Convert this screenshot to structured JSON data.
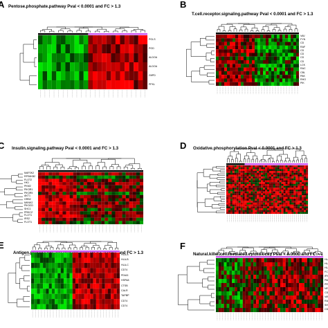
{
  "chart_data": [
    {
      "type": "heatmap",
      "panel": "A",
      "title": "Pentose.phosphate.pathway Pval < 0.0001 and FC > 1.3",
      "rows": [
        "PGLS",
        "PGD",
        "ALDOA",
        "ALDOA",
        "G6PD",
        "PFKL"
      ],
      "n_samples": 24,
      "group_split": 0.47,
      "scheme": "A"
    },
    {
      "type": "heatmap",
      "panel": "B",
      "title": "T.cell.receptor.signaling.pathway Pval < 0.0001 and FC > 1.3",
      "rows": [
        "VAV",
        "FYN",
        "CD",
        "RAF",
        "CD",
        "CD",
        "CD",
        "CD",
        "LCK",
        "RAC",
        "CBL",
        "PAK",
        "RHO",
        "PIK"
      ],
      "n_samples": 30,
      "group_split": 0.45,
      "scheme": "B"
    },
    {
      "type": "heatmap",
      "panel": "C",
      "title": "Insulin.signaling.pathway Pval < 0.0001 and FC > 1.3",
      "rows": [
        "MAP2K2",
        "RPS6KB2",
        "FLOT2",
        "HK1",
        "PKM2",
        "PIK3R1",
        "PIK3R5",
        "AKT1",
        "GRB2",
        "MKNK2",
        "PIK3CD",
        "SHC1",
        "PRKCZ",
        "FLOT1",
        "IRS2",
        "FLOT1"
      ],
      "n_samples": 30,
      "group_split": 0.35,
      "scheme": "C"
    },
    {
      "type": "heatmap",
      "panel": "D",
      "title": "Oxidative.phosphorylation Pval < 0.0001 and FC > 1.3",
      "rows": [],
      "n_samples": 40,
      "group_split": 0.22,
      "scheme": "D"
    },
    {
      "type": "heatmap",
      "panel": "E",
      "title": "Antigen.processing.and.presentation Pval < 0.0001 and FC > 1.3",
      "rows": [
        "HLA-A",
        "HLA-B",
        "HLA-C",
        "CD74",
        "PDIA3",
        "HSPA8",
        "CTSB",
        "CALR",
        "TAPBP",
        "CD74",
        "CD74"
      ],
      "n_samples": 30,
      "group_split": 0.48,
      "scheme": "E"
    },
    {
      "type": "heatmap",
      "panel": "F",
      "title": "Natural.killer.cell.mediated.cytotoxicity Pval < 0.0001 and FC > 1",
      "rows": [
        "HLA",
        "HLA",
        "HLA",
        "FCE",
        "IFN",
        "PAK",
        "PRF",
        "NFA",
        "CD4",
        "VAV",
        "RAC",
        "SH2",
        "CD2"
      ],
      "n_samples": 40,
      "group_split": 0.5,
      "scheme": "F"
    }
  ],
  "colors": {
    "red": "#ff0000",
    "green": "#00dd00",
    "black": "#000000",
    "purple": "#cc55ee"
  }
}
